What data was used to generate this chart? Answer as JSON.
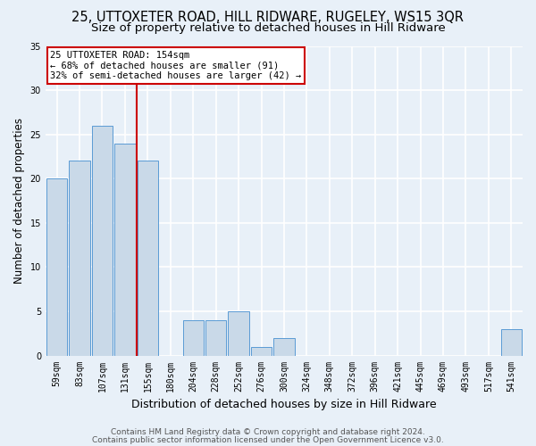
{
  "title": "25, UTTOXETER ROAD, HILL RIDWARE, RUGELEY, WS15 3QR",
  "subtitle": "Size of property relative to detached houses in Hill Ridware",
  "xlabel": "Distribution of detached houses by size in Hill Ridware",
  "ylabel": "Number of detached properties",
  "categories": [
    "59sqm",
    "83sqm",
    "107sqm",
    "131sqm",
    "155sqm",
    "180sqm",
    "204sqm",
    "228sqm",
    "252sqm",
    "276sqm",
    "300sqm",
    "324sqm",
    "348sqm",
    "372sqm",
    "396sqm",
    "421sqm",
    "445sqm",
    "469sqm",
    "493sqm",
    "517sqm",
    "541sqm"
  ],
  "values": [
    20,
    22,
    26,
    24,
    22,
    0,
    4,
    4,
    5,
    1,
    2,
    0,
    0,
    0,
    0,
    0,
    0,
    0,
    0,
    0,
    3
  ],
  "bar_color": "#c9d9e8",
  "bar_edge_color": "#5b9bd5",
  "vline_bin_index": 3.5,
  "annotation_text": "25 UTTOXETER ROAD: 154sqm\n← 68% of detached houses are smaller (91)\n32% of semi-detached houses are larger (42) →",
  "annotation_box_color": "#ffffff",
  "annotation_box_edge_color": "#cc0000",
  "vline_color": "#cc0000",
  "footer_line1": "Contains HM Land Registry data © Crown copyright and database right 2024.",
  "footer_line2": "Contains public sector information licensed under the Open Government Licence v3.0.",
  "ylim": [
    0,
    35
  ],
  "yticks": [
    0,
    5,
    10,
    15,
    20,
    25,
    30,
    35
  ],
  "bg_color": "#e8f0f8",
  "grid_color": "#ffffff",
  "title_fontsize": 10.5,
  "subtitle_fontsize": 9.5,
  "ylabel_fontsize": 8.5,
  "xlabel_fontsize": 9,
  "tick_fontsize": 7,
  "annotation_fontsize": 7.5,
  "footer_fontsize": 6.5
}
